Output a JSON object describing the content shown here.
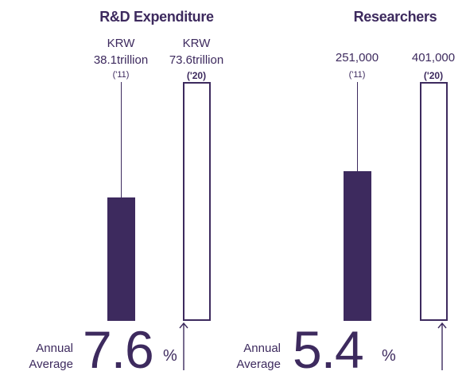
{
  "chart_data": [
    {
      "type": "bar",
      "title": "R&D Expenditure",
      "categories": [
        "('11)",
        "('20)"
      ],
      "values": [
        38.1,
        73.6
      ],
      "value_labels": [
        "KRW 38.1trillion",
        "KRW 73.6trillion"
      ],
      "color": "#3d2a5e",
      "annual_average": {
        "label": "Annual Average",
        "value": 7.6,
        "unit": "%"
      }
    },
    {
      "type": "bar",
      "title": "Researchers",
      "categories": [
        "('11)",
        "('20)"
      ],
      "values": [
        251000,
        401000
      ],
      "value_labels": [
        "251,000",
        "401,000"
      ],
      "color": "#3d2a5e",
      "annual_average": {
        "label": "Annual Average",
        "value": 5.4,
        "unit": "%"
      }
    }
  ]
}
